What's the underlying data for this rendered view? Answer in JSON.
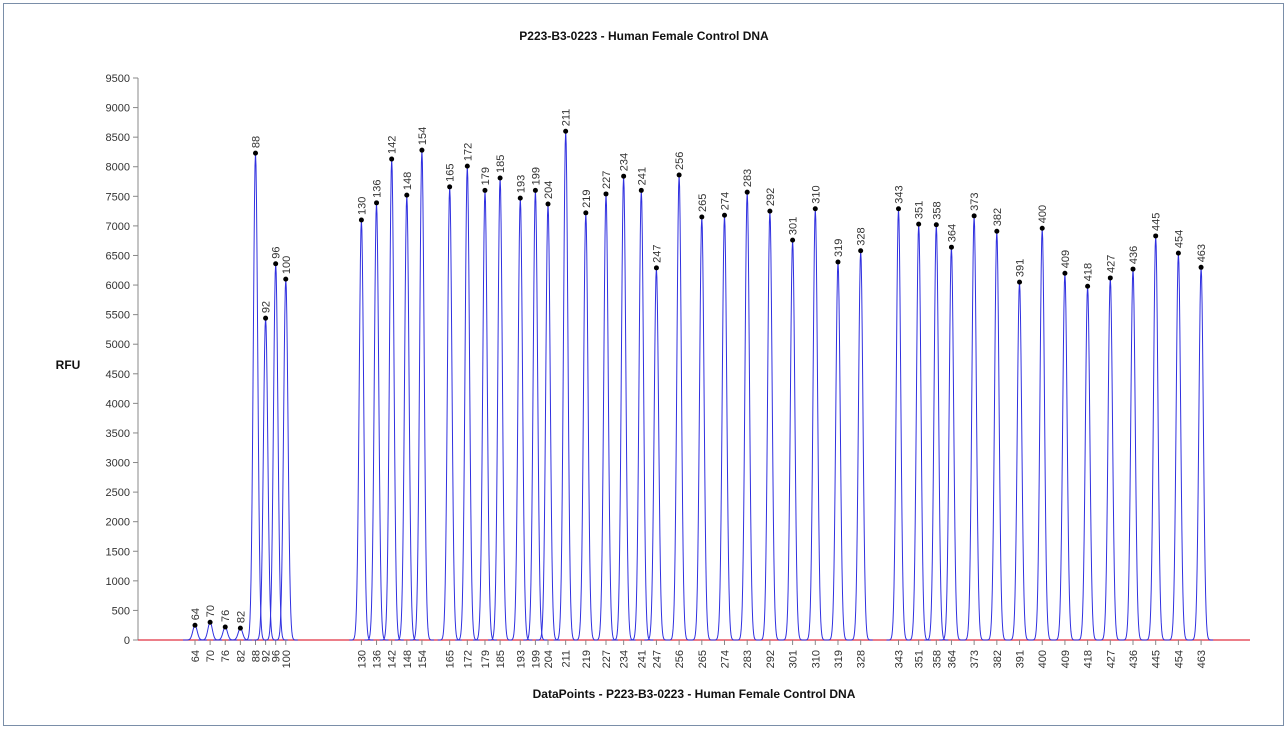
{
  "chart_data": {
    "type": "peaks",
    "title": "P223-B3-0223 - Human Female Control DNA",
    "x_label": "DataPoints - P223-B3-0223 - Human Female Control DNA",
    "y_label": "RFU",
    "x": [
      64,
      70,
      76,
      82,
      88,
      92,
      96,
      100,
      130,
      136,
      142,
      148,
      154,
      165,
      172,
      179,
      185,
      193,
      199,
      204,
      211,
      219,
      227,
      234,
      241,
      247,
      256,
      265,
      274,
      283,
      292,
      301,
      310,
      319,
      328,
      343,
      351,
      358,
      364,
      373,
      382,
      391,
      400,
      409,
      418,
      427,
      436,
      445,
      454,
      463
    ],
    "values": [
      250,
      300,
      220,
      200,
      8230,
      5440,
      6360,
      6100,
      7100,
      7390,
      8130,
      7520,
      8280,
      7660,
      8010,
      7600,
      7810,
      7470,
      7600,
      7370,
      8600,
      7220,
      7540,
      7840,
      7600,
      6290,
      7860,
      7150,
      7180,
      7570,
      7250,
      6760,
      7290,
      6390,
      6580,
      7290,
      7030,
      7020,
      6640,
      7170,
      6910,
      6050,
      6960,
      6200,
      5980,
      6120,
      6270,
      6830,
      6540,
      6300
    ],
    "color": "#3030e0",
    "baseline_color": "#e03040",
    "marker_color": "#000000",
    "xlim": [
      41.4,
      482.4
    ],
    "ylim": [
      0,
      9500
    ],
    "yticks": [
      0,
      500,
      1000,
      1500,
      2000,
      2500,
      3000,
      3500,
      4000,
      4500,
      5000,
      5500,
      6000,
      6500,
      7000,
      7500,
      8000,
      8500,
      9000,
      9500
    ]
  }
}
